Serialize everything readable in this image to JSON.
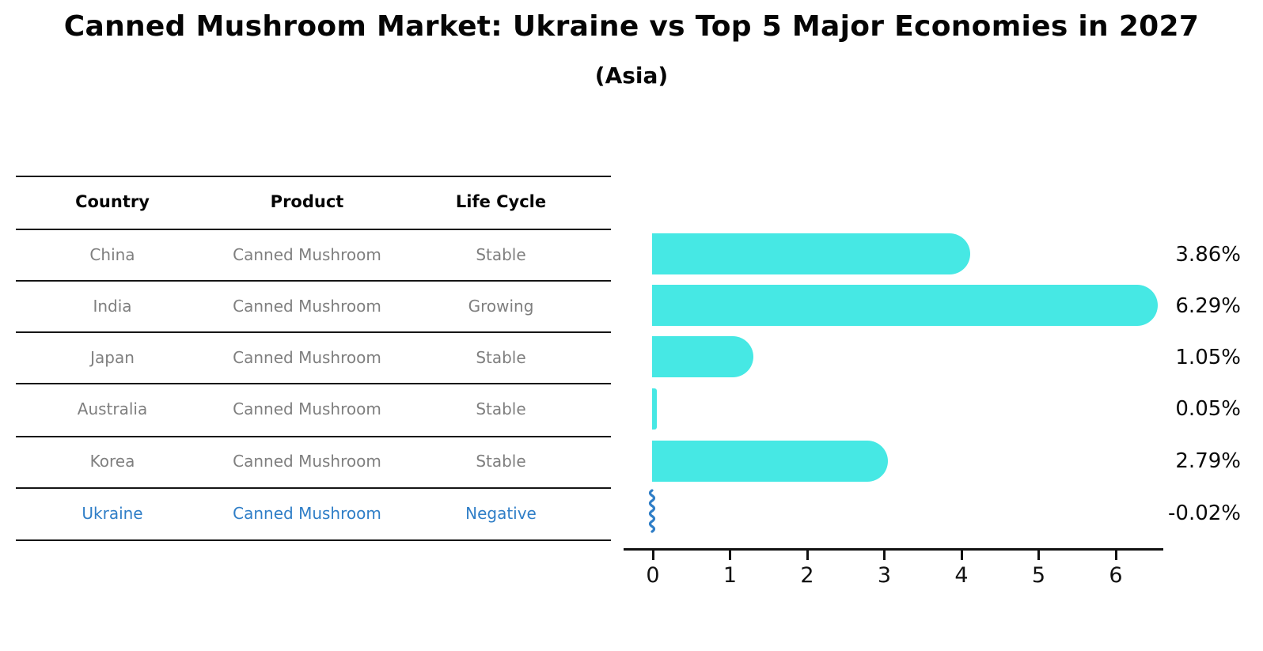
{
  "title": "Canned Mushroom Market: Ukraine vs Top 5 Major Economies in 2027",
  "subtitle": "(Asia)",
  "table": {
    "headers": [
      "Country",
      "Product",
      "Life Cycle"
    ],
    "rows": [
      {
        "country": "China",
        "product": "Canned Mushroom",
        "life_cycle": "Stable",
        "highlight": false
      },
      {
        "country": "India",
        "product": "Canned Mushroom",
        "life_cycle": "Growing",
        "highlight": false
      },
      {
        "country": "Japan",
        "product": "Canned Mushroom",
        "life_cycle": "Stable",
        "highlight": false
      },
      {
        "country": "Australia",
        "product": "Canned Mushroom",
        "life_cycle": "Stable",
        "highlight": false
      },
      {
        "country": "Korea",
        "product": "Canned Mushroom",
        "life_cycle": "Stable",
        "highlight": false
      },
      {
        "country": "Ukraine",
        "product": "Canned Mushroom",
        "life_cycle": "Negative",
        "highlight": true
      }
    ]
  },
  "chart_data": {
    "type": "bar",
    "orientation": "horizontal",
    "categories": [
      "China",
      "India",
      "Japan",
      "Australia",
      "Korea",
      "Ukraine"
    ],
    "values": [
      3.86,
      6.29,
      1.05,
      0.05,
      2.79,
      -0.02
    ],
    "value_labels": [
      "3.86%",
      "6.29%",
      "1.05%",
      "0.05%",
      "2.79%",
      "-0.02%"
    ],
    "xlabel": "",
    "ylabel": "",
    "xlim": [
      0,
      6.7
    ],
    "xticks": [
      "0",
      "1",
      "2",
      "3",
      "4",
      "5",
      "6"
    ],
    "grid": false,
    "legend": false,
    "bar_color": "#46e8e4",
    "highlight_color": "#2f7ec7",
    "muted_text_color": "#7f7f7f",
    "axis_color": "#111111"
  }
}
